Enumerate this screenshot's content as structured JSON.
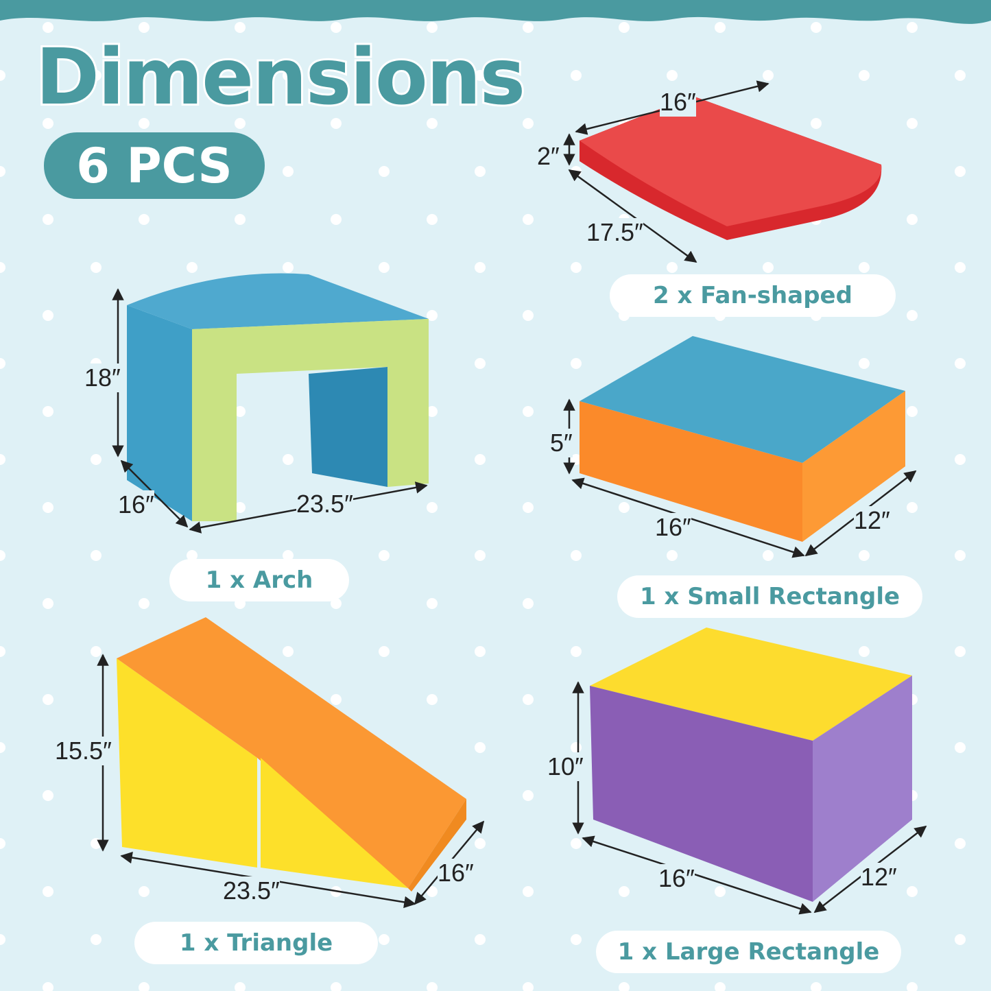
{
  "header": {
    "title": "Dimensions",
    "count": "6 PCS"
  },
  "colors": {
    "teal": "#4a9aa0",
    "background": "#dff1f6",
    "red": "#ea4446",
    "blue": "#4aa7c9",
    "green": "#c8e27f",
    "orange": "#fb8a2a",
    "yellow": "#fde02a",
    "purple": "#8a62b8"
  },
  "pieces": [
    {
      "label": "2 x Fan-shaped",
      "dims": [
        "16″",
        "2″",
        "17.5″"
      ]
    },
    {
      "label": "1 x Arch",
      "dims": [
        "18″",
        "16″",
        "23.5″"
      ]
    },
    {
      "label": "1 x Small Rectangle",
      "dims": [
        "5″",
        "16″",
        "12″"
      ]
    },
    {
      "label": "1 x Triangle",
      "dims": [
        "15.5″",
        "23.5″",
        "16″"
      ]
    },
    {
      "label": "1 x Large Rectangle",
      "dims": [
        "10″",
        "16″",
        "12″"
      ]
    }
  ]
}
